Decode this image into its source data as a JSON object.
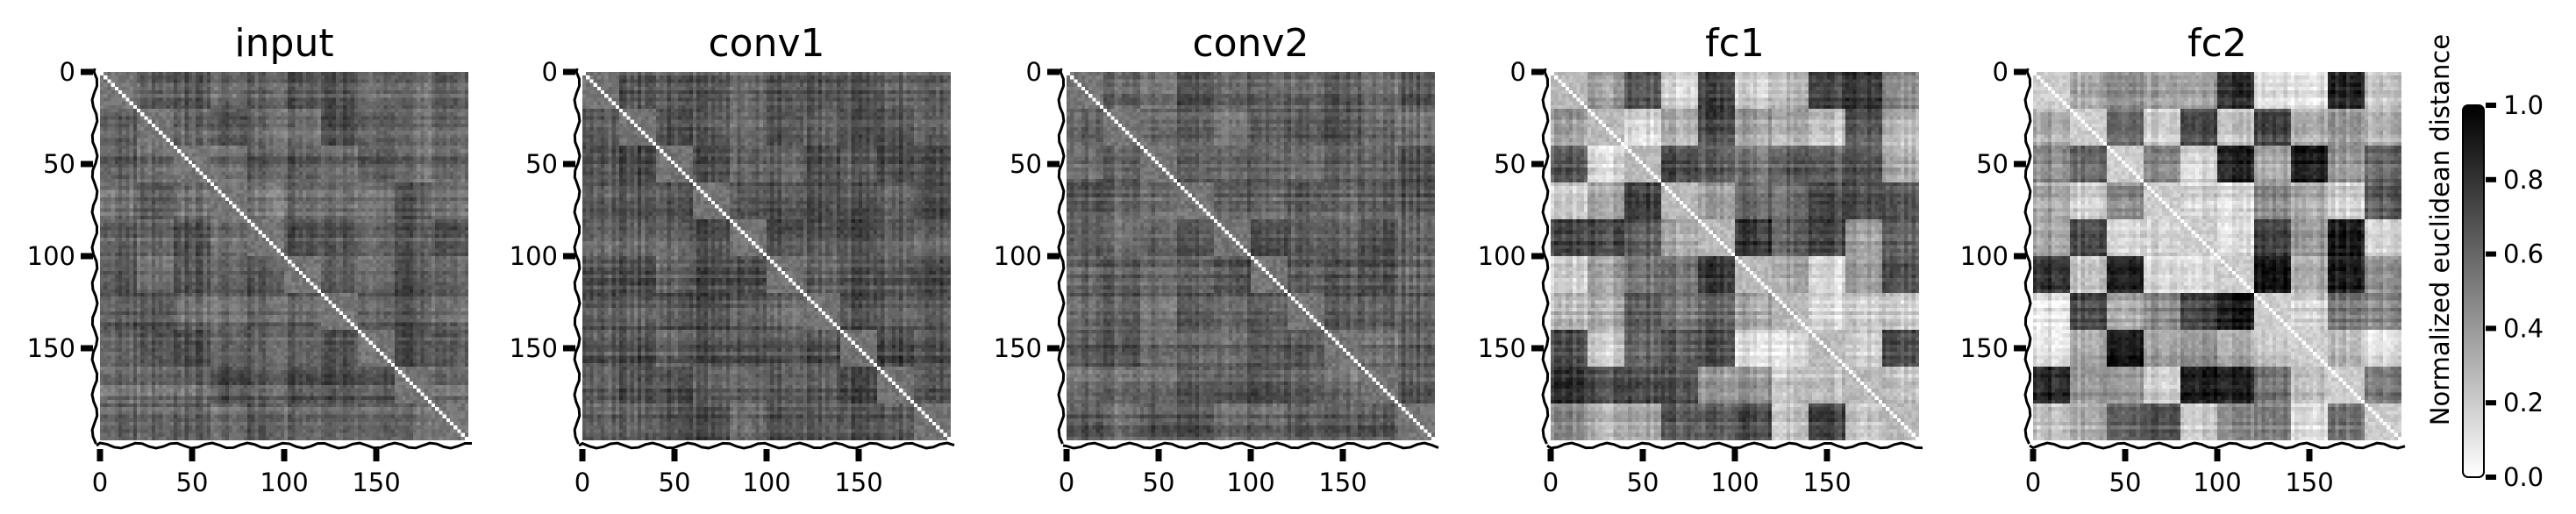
{
  "chart_data": {
    "type": "heatmap",
    "colormap": [
      "#ffffff",
      "#000000"
    ],
    "matrix_size": 200,
    "block_size": 20,
    "tick_values": [
      0,
      50,
      100,
      150
    ],
    "tick_labels": [
      "0",
      "50",
      "100",
      "150"
    ],
    "axis_range": [
      0,
      200
    ],
    "panels": [
      {
        "title": "input",
        "contrast": 0.16,
        "base": 0.62
      },
      {
        "title": "conv1",
        "contrast": 0.14,
        "base": 0.66
      },
      {
        "title": "conv2",
        "contrast": 0.16,
        "base": 0.62
      },
      {
        "title": "fc1",
        "contrast": 0.75,
        "base": 0.46
      },
      {
        "title": "fc2",
        "contrast": 0.92,
        "base": 0.5
      }
    ],
    "colorbar": {
      "label": "Normalized euclidean distance",
      "range": [
        0.0,
        1.0
      ],
      "ticks": [
        0.0,
        0.2,
        0.4,
        0.6,
        0.8,
        1.0
      ],
      "tick_labels": [
        "0.0",
        "0.2",
        "0.4",
        "0.6",
        "0.8",
        "1.0"
      ]
    }
  }
}
